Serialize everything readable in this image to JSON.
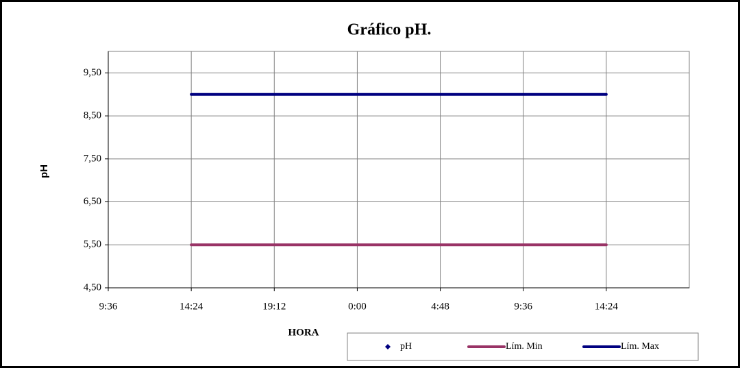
{
  "chart_data": {
    "type": "line",
    "title": "Gráfico  pH.",
    "x_label": "HORA",
    "y_label": "pH",
    "x": [
      14.4,
      38.4
    ],
    "series": [
      {
        "name": "pH",
        "color": "#000080",
        "marker": "diamond",
        "values": [
          null,
          null
        ]
      },
      {
        "name": "Lím. Min",
        "color": "#993366",
        "values": [
          5.5,
          5.5
        ]
      },
      {
        "name": "Lím. Max",
        "color": "#000080",
        "values": [
          9.0,
          9.0
        ]
      }
    ],
    "xlim": [
      9.6,
      43.2
    ],
    "xticks": [
      {
        "value": 9.6,
        "label": "9:36"
      },
      {
        "value": 14.4,
        "label": "14:24"
      },
      {
        "value": 19.2,
        "label": "19:12"
      },
      {
        "value": 24,
        "label": "0:00"
      },
      {
        "value": 28.8,
        "label": "4:48"
      },
      {
        "value": 33.6,
        "label": "9:36"
      },
      {
        "value": 38.4,
        "label": "14:24"
      }
    ],
    "ylim": [
      4.5,
      10
    ],
    "yticks": [
      {
        "value": 4.5,
        "label": "4,50"
      },
      {
        "value": 5.5,
        "label": "5,50"
      },
      {
        "value": 6.5,
        "label": "6,50"
      },
      {
        "value": 7.5,
        "label": "7,50"
      },
      {
        "value": 8.5,
        "label": "8,50"
      },
      {
        "value": 9.5,
        "label": "9,50"
      }
    ],
    "grid": true,
    "legend": "bottom-right"
  }
}
